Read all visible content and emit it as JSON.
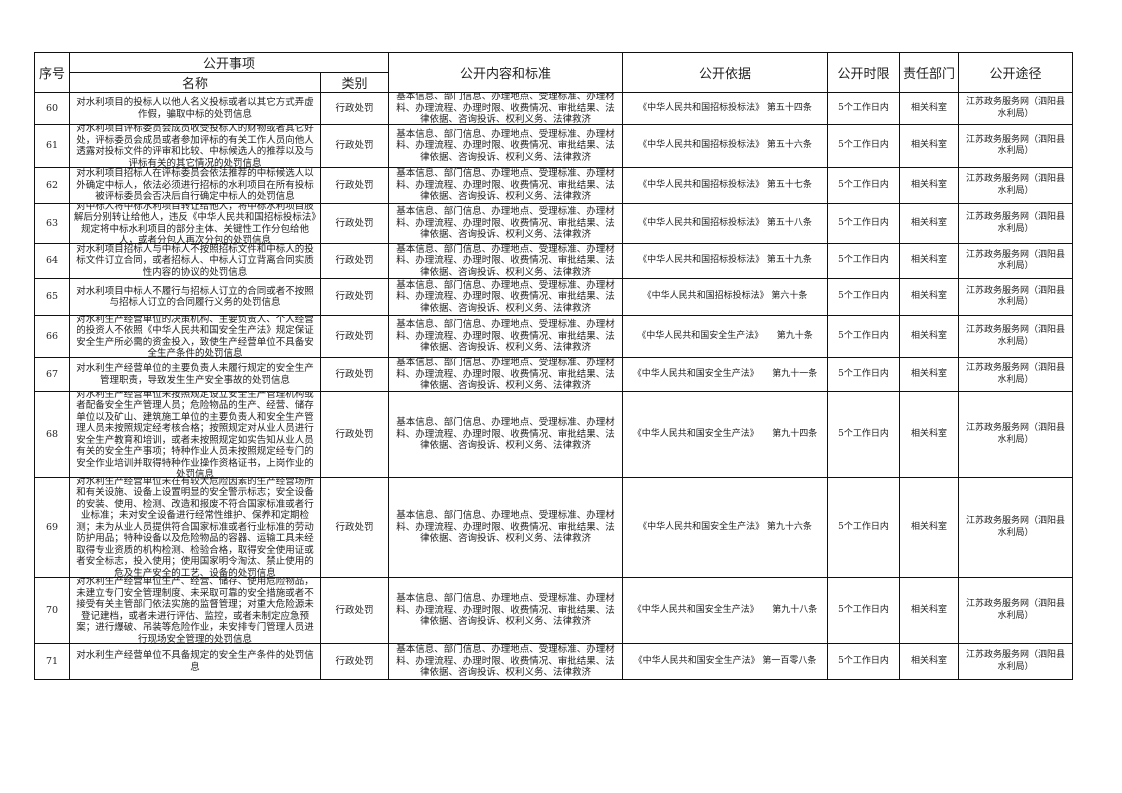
{
  "header": {
    "seq": "序号",
    "item_group": "公开事项",
    "name": "名称",
    "category": "类别",
    "content": "公开内容和标准",
    "basis": "公开依据",
    "time_limit": "公开时限",
    "department": "责任部门",
    "channel": "公开途径"
  },
  "rows": [
    {
      "seq": "60",
      "name": "对水利项目的投标人以他人名义投标或者以其它方式弄虚作假，骗取中标的处罚信息",
      "category": "行政处罚",
      "content": "基本信息、部门信息、办理地点、受理标准、办理材料、办理流程、办理时限、收费情况、审批结果、法律依据、咨询投诉、权利义务、法律救济",
      "basis": "《中华人民共和国招标投标法》 第五十四条",
      "time_limit": "5个工作日内",
      "department": "相关科室",
      "channel": "江苏政务服务网（泗阳县水利局）"
    },
    {
      "seq": "61",
      "name": "对水利项目评标委员会成员收受投标人的财物或者其它好处，评标委员会成员或者参加评标的有关工作人员向他人透露对投标文件的评审和比较、中标候选人的推荐以及与评标有关的其它情况的处罚信息",
      "category": "行政处罚",
      "content": "基本信息、部门信息、办理地点、受理标准、办理材料、办理流程、办理时限、收费情况、审批结果、法律依据、咨询投诉、权利义务、法律救济",
      "basis": "《中华人民共和国招标投标法》 第五十六条",
      "time_limit": "5个工作日内",
      "department": "相关科室",
      "channel": "江苏政务服务网（泗阳县水利局）"
    },
    {
      "seq": "62",
      "name": "对水利项目招标人在评标委员会依法推荐的中标候选人以外确定中标人，依法必须进行招标的水利项目在所有投标被评标委员会否决后自行确定中标人的处罚信息",
      "category": "行政处罚",
      "content": "基本信息、部门信息、办理地点、受理标准、办理材料、办理流程、办理时限、收费情况、审批结果、法律依据、咨询投诉、权利义务、法律救济",
      "basis": "《中华人民共和国招标投标法》 第五十七条",
      "time_limit": "5个工作日内",
      "department": "相关科室",
      "channel": "江苏政务服务网（泗阳县水利局）"
    },
    {
      "seq": "63",
      "name": "对中标人将中标水利项目转让给他人，将中标水利项目肢解后分别转让给他人，违反《中华人民共和国招标投标法》规定将中标水利项目的部分主体、关键性工作分包给他人，或者分包人再次分包的处罚信息",
      "category": "行政处罚",
      "content": "基本信息、部门信息、办理地点、受理标准、办理材料、办理流程、办理时限、收费情况、审批结果、法律依据、咨询投诉、权利义务、法律救济",
      "basis": "《中华人民共和国招标投标法》 第五十八条",
      "time_limit": "5个工作日内",
      "department": "相关科室",
      "channel": "江苏政务服务网（泗阳县水利局）"
    },
    {
      "seq": "64",
      "name": "对水利项目招标人与中标人不按照招标文件和中标人的投标文件订立合同，或者招标人、中标人订立背离合同实质性内容的协议的处罚信息",
      "category": "行政处罚",
      "content": "基本信息、部门信息、办理地点、受理标准、办理材料、办理流程、办理时限、收费情况、审批结果、法律依据、咨询投诉、权利义务、法律救济",
      "basis": "《中华人民共和国招标投标法》 第五十九条",
      "time_limit": "5个工作日内",
      "department": "相关科室",
      "channel": "江苏政务服务网（泗阳县水利局）"
    },
    {
      "seq": "65",
      "name": "对水利项目中标人不履行与招标人订立的合同或者不按照与招标人订立的合同履行义务的处罚信息",
      "category": "行政处罚",
      "content": "基本信息、部门信息、办理地点、受理标准、办理材料、办理流程、办理时限、收费情况、审批结果、法律依据、咨询投诉、权利义务、法律救济",
      "basis": "《中华人民共和国招标投标法》 第六十条",
      "time_limit": "5个工作日内",
      "department": "相关科室",
      "channel": "江苏政务服务网（泗阳县水利局）"
    },
    {
      "seq": "66",
      "name": "对水利生产经营单位的决策机构、主要负责人、个人经营的投资人不依照《中华人民共和国安全生产法》规定保证安全生产所必需的资金投入，致使生产经营单位不具备安全生产条件的处罚信息",
      "category": "行政处罚",
      "content": "基本信息、部门信息、办理地点、受理标准、办理材料、办理流程、办理时限、收费情况、审批结果、法律依据、咨询投诉、权利义务、法律救济",
      "basis": "《中华人民共和国安全生产法》　　第九十条",
      "time_limit": "5个工作日内",
      "department": "相关科室",
      "channel": "江苏政务服务网（泗阳县水利局）"
    },
    {
      "seq": "67",
      "name": "对水利生产经营单位的主要负责人未履行规定的安全生产管理职责，导致发生生产安全事故的处罚信息",
      "category": "行政处罚",
      "content": "基本信息、部门信息、办理地点、受理标准、办理材料、办理流程、办理时限、收费情况、审批结果、法律依据、咨询投诉、权利义务、法律救济",
      "basis": "《中华人民共和国安全生产法》　　第九十一条",
      "time_limit": "5个工作日内",
      "department": "相关科室",
      "channel": "江苏政务服务网（泗阳县水利局）"
    },
    {
      "seq": "68",
      "name": "对水利生产经营单位未按照规定设立安全生产管理机构或者配备安全生产管理人员；危险物品的生产、经营、储存单位以及矿山、建筑施工单位的主要负责人和安全生产管理人员未按照规定经考核合格；按照规定对从业人员进行安全生产教育和培训，或者未按照规定如实告知从业人员有关的安全生产事项；特种作业人员未按照规定经专门的安全作业培训并取得特种作业操作资格证书，上岗作业的处罚信息",
      "category": "行政处罚",
      "content": "基本信息、部门信息、办理地点、受理标准、办理材料、办理流程、办理时限、收费情况、审批结果、法律依据、咨询投诉、权利义务、法律救济",
      "basis": "《中华人民共和国安全生产法》　　第九十四条",
      "time_limit": "5个工作日内",
      "department": "相关科室",
      "channel": "江苏政务服务网（泗阳县水利局）"
    },
    {
      "seq": "69",
      "name": "对水利生产经营单位未在有较大危险因素的生产经营场所和有关设施、设备上设置明显的安全警示标志；安全设备的安装、使用、检测、改造和报废不符合国家标准或者行业标准；未对安全设备进行经常性维护、保养和定期检测；未为从业人员提供符合国家标准或者行业标准的劳动防护用品；特种设备以及危险物品的容器、运输工具未经取得专业资质的机构检测、检验合格，取得安全使用证或者安全标志，投入使用；使用国家明令淘汰、禁止使用的危及生产安全的工艺、设备的处罚信息",
      "category": "行政处罚",
      "content": "基本信息、部门信息、办理地点、受理标准、办理材料、办理流程、办理时限、收费情况、审批结果、法律依据、咨询投诉、权利义务、法律救济",
      "basis": "《中华人民共和国安全生产法》 第九十六条",
      "time_limit": "5个工作日内",
      "department": "相关科室",
      "channel": "江苏政务服务网（泗阳县水利局）"
    },
    {
      "seq": "70",
      "name": "对水利生产经营单位生产、经营、储存、使用危险物品，未建立专门安全管理制度、未采取可靠的安全措施或者不接受有关主管部门依法实施的监督管理；对重大危险源未登记建档，或者未进行评估、监控，或者未制定应急预案；进行爆破、吊装等危险作业，未安排专门管理人员进行现场安全管理的处罚信息",
      "category": "行政处罚",
      "content": "基本信息、部门信息、办理地点、受理标准、办理材料、办理流程、办理时限、收费情况、审批结果、法律依据、咨询投诉、权利义务、法律救济",
      "basis": "《中华人民共和国安全生产法》　　第九十八条",
      "time_limit": "5个工作日内",
      "department": "相关科室",
      "channel": "江苏政务服务网（泗阳县水利局）"
    },
    {
      "seq": "71",
      "name": "对水利生产经营单位不具备规定的安全生产条件的处罚信息",
      "category": "行政处罚",
      "content": "基本信息、部门信息、办理地点、受理标准、办理材料、办理流程、办理时限、收费情况、审批结果、法律依据、咨询投诉、权利义务、法律救济",
      "basis": "《中华人民共和国安全生产法》 第一百零八条",
      "time_limit": "5个工作日内",
      "department": "相关科室",
      "channel": "江苏政务服务网（泗阳县水利局）"
    }
  ]
}
